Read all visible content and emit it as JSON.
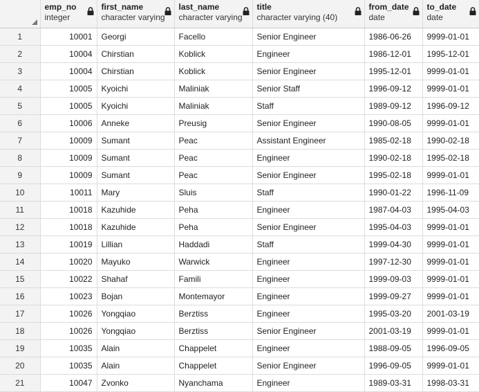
{
  "columns": [
    {
      "name": "emp_no",
      "type": "integer"
    },
    {
      "name": "first_name",
      "type": "character varying"
    },
    {
      "name": "last_name",
      "type": "character varying"
    },
    {
      "name": "title",
      "type": "character varying (40)"
    },
    {
      "name": "from_date",
      "type": "date"
    },
    {
      "name": "to_date",
      "type": "date"
    }
  ],
  "rows": [
    {
      "n": "1",
      "emp_no": "10001",
      "first_name": "Georgi",
      "last_name": "Facello",
      "title": "Senior Engineer",
      "from_date": "1986-06-26",
      "to_date": "9999-01-01"
    },
    {
      "n": "2",
      "emp_no": "10004",
      "first_name": "Chirstian",
      "last_name": "Koblick",
      "title": "Engineer",
      "from_date": "1986-12-01",
      "to_date": "1995-12-01"
    },
    {
      "n": "3",
      "emp_no": "10004",
      "first_name": "Chirstian",
      "last_name": "Koblick",
      "title": "Senior Engineer",
      "from_date": "1995-12-01",
      "to_date": "9999-01-01"
    },
    {
      "n": "4",
      "emp_no": "10005",
      "first_name": "Kyoichi",
      "last_name": "Maliniak",
      "title": "Senior Staff",
      "from_date": "1996-09-12",
      "to_date": "9999-01-01"
    },
    {
      "n": "5",
      "emp_no": "10005",
      "first_name": "Kyoichi",
      "last_name": "Maliniak",
      "title": "Staff",
      "from_date": "1989-09-12",
      "to_date": "1996-09-12"
    },
    {
      "n": "6",
      "emp_no": "10006",
      "first_name": "Anneke",
      "last_name": "Preusig",
      "title": "Senior Engineer",
      "from_date": "1990-08-05",
      "to_date": "9999-01-01"
    },
    {
      "n": "7",
      "emp_no": "10009",
      "first_name": "Sumant",
      "last_name": "Peac",
      "title": "Assistant Engineer",
      "from_date": "1985-02-18",
      "to_date": "1990-02-18"
    },
    {
      "n": "8",
      "emp_no": "10009",
      "first_name": "Sumant",
      "last_name": "Peac",
      "title": "Engineer",
      "from_date": "1990-02-18",
      "to_date": "1995-02-18"
    },
    {
      "n": "9",
      "emp_no": "10009",
      "first_name": "Sumant",
      "last_name": "Peac",
      "title": "Senior Engineer",
      "from_date": "1995-02-18",
      "to_date": "9999-01-01"
    },
    {
      "n": "10",
      "emp_no": "10011",
      "first_name": "Mary",
      "last_name": "Sluis",
      "title": "Staff",
      "from_date": "1990-01-22",
      "to_date": "1996-11-09"
    },
    {
      "n": "11",
      "emp_no": "10018",
      "first_name": "Kazuhide",
      "last_name": "Peha",
      "title": "Engineer",
      "from_date": "1987-04-03",
      "to_date": "1995-04-03"
    },
    {
      "n": "12",
      "emp_no": "10018",
      "first_name": "Kazuhide",
      "last_name": "Peha",
      "title": "Senior Engineer",
      "from_date": "1995-04-03",
      "to_date": "9999-01-01"
    },
    {
      "n": "13",
      "emp_no": "10019",
      "first_name": "Lillian",
      "last_name": "Haddadi",
      "title": "Staff",
      "from_date": "1999-04-30",
      "to_date": "9999-01-01"
    },
    {
      "n": "14",
      "emp_no": "10020",
      "first_name": "Mayuko",
      "last_name": "Warwick",
      "title": "Engineer",
      "from_date": "1997-12-30",
      "to_date": "9999-01-01"
    },
    {
      "n": "15",
      "emp_no": "10022",
      "first_name": "Shahaf",
      "last_name": "Famili",
      "title": "Engineer",
      "from_date": "1999-09-03",
      "to_date": "9999-01-01"
    },
    {
      "n": "16",
      "emp_no": "10023",
      "first_name": "Bojan",
      "last_name": "Montemayor",
      "title": "Engineer",
      "from_date": "1999-09-27",
      "to_date": "9999-01-01"
    },
    {
      "n": "17",
      "emp_no": "10026",
      "first_name": "Yongqiao",
      "last_name": "Berztiss",
      "title": "Engineer",
      "from_date": "1995-03-20",
      "to_date": "2001-03-19"
    },
    {
      "n": "18",
      "emp_no": "10026",
      "first_name": "Yongqiao",
      "last_name": "Berztiss",
      "title": "Senior Engineer",
      "from_date": "2001-03-19",
      "to_date": "9999-01-01"
    },
    {
      "n": "19",
      "emp_no": "10035",
      "first_name": "Alain",
      "last_name": "Chappelet",
      "title": "Engineer",
      "from_date": "1988-09-05",
      "to_date": "1996-09-05"
    },
    {
      "n": "20",
      "emp_no": "10035",
      "first_name": "Alain",
      "last_name": "Chappelet",
      "title": "Senior Engineer",
      "from_date": "1996-09-05",
      "to_date": "9999-01-01"
    },
    {
      "n": "21",
      "emp_no": "10047",
      "first_name": "Zvonko",
      "last_name": "Nyanchama",
      "title": "Engineer",
      "from_date": "1989-03-31",
      "to_date": "1998-03-31"
    }
  ],
  "icons": {
    "header_lock": "lock-icon",
    "corner": "sort-triangle-icon"
  },
  "colors": {
    "header_bg": "#f3f3f3",
    "grid_line": "#dcdcdc",
    "text": "#222222"
  }
}
